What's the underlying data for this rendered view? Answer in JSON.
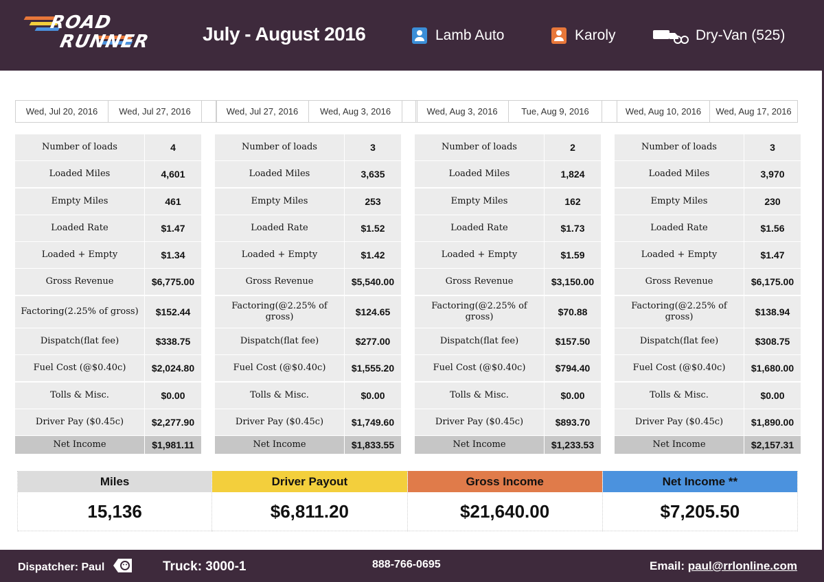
{
  "header": {
    "logo_line1": "ROAD",
    "logo_line2": "RUNNER",
    "title": "July - August 2016",
    "customer": "Lamb Auto",
    "driver": "Karoly",
    "truck_type": "Dry-Van (525)",
    "icons": [
      "person-icon",
      "person-icon",
      "truck-icon"
    ],
    "colors": {
      "customer_icon": "#3b8ed8",
      "driver_icon": "#e8773a",
      "bar": "#3e2a3c"
    }
  },
  "row_labels": [
    "Number of loads",
    "Loaded Miles",
    "Empty Miles",
    "Loaded Rate",
    "Loaded + Empty",
    "Gross Revenue",
    "Factoring(@2.25% of gross)",
    "Dispatch(flat fee)",
    "Fuel Cost (@$0.40c)",
    "Tolls & Misc.",
    "Driver Pay ($0.45c)",
    "Net Income"
  ],
  "first_factoring_label": "Factoring(2.25% of gross)",
  "weeks": [
    {
      "start": "Wed, Jul 20, 2016",
      "end": "Wed, Jul 27, 2016",
      "values": [
        "4",
        "4,601",
        "461",
        "$1.47",
        "$1.34",
        "$6,775.00",
        "$152.44",
        "$338.75",
        "$2,024.80",
        "$0.00",
        "$2,277.90",
        "$1,981.11"
      ]
    },
    {
      "start": "Wed, Jul 27, 2016",
      "end": "Wed, Aug 3, 2016",
      "values": [
        "3",
        "3,635",
        "253",
        "$1.52",
        "$1.42",
        "$5,540.00",
        "$124.65",
        "$277.00",
        "$1,555.20",
        "$0.00",
        "$1,749.60",
        "$1,833.55"
      ]
    },
    {
      "start": "Wed, Aug 3, 2016",
      "end": "Tue, Aug 9, 2016",
      "values": [
        "2",
        "1,824",
        "162",
        "$1.73",
        "$1.59",
        "$3,150.00",
        "$70.88",
        "$157.50",
        "$794.40",
        "$0.00",
        "$893.70",
        "$1,233.53"
      ]
    },
    {
      "start": "Wed, Aug 10, 2016",
      "end": "Wed, Aug 17, 2016",
      "values": [
        "3",
        "3,970",
        "230",
        "$1.56",
        "$1.47",
        "$6,175.00",
        "$138.94",
        "$308.75",
        "$1,680.00",
        "$0.00",
        "$1,890.00",
        "$2,157.31"
      ]
    }
  ],
  "summary": [
    {
      "label": "Miles",
      "value": "15,136",
      "color": "#dcdcdc"
    },
    {
      "label": "Driver Payout",
      "value": "$6,811.20",
      "color": "#f3cf3c"
    },
    {
      "label": "Gross Income",
      "value": "$21,640.00",
      "color": "#e07b4a"
    },
    {
      "label": "Net Income **",
      "value": "$7,205.50",
      "color": "#4b92de"
    }
  ],
  "footer": {
    "dispatcher": "Dispatcher: Paul",
    "truck": "Truck: 3000-1",
    "phone": "888-766-0695",
    "email_label": "Email:",
    "email": "paul@rrlonline.com"
  }
}
